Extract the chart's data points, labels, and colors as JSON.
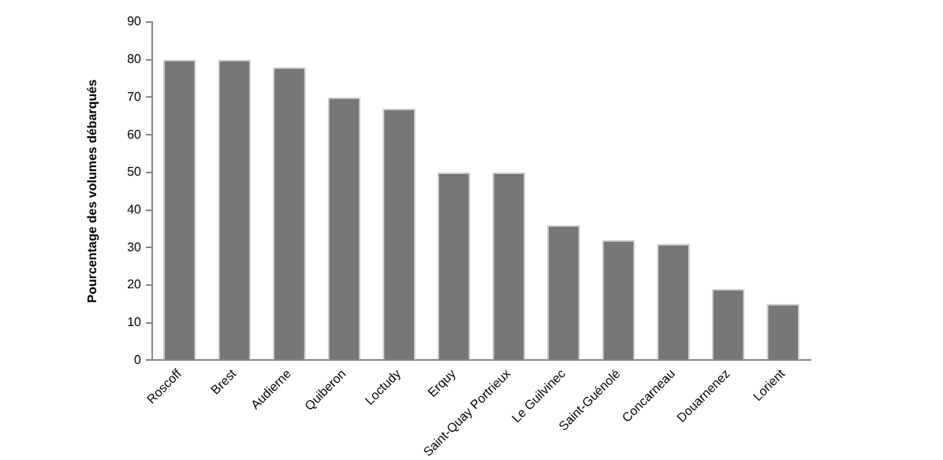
{
  "chart_data": {
    "type": "bar",
    "ylabel": "Pourcentage des volumes débarqués",
    "categories": [
      "Roscoff",
      "Brest",
      "Audierne",
      "Quiberon",
      "Loctudy",
      "Erquy",
      "Saint-Quay Portrieux",
      "Le Guilvinec",
      "Saint-Guénolé",
      "Concarneau",
      "Douarnenez",
      "Lorient"
    ],
    "values": [
      80,
      80,
      78,
      70,
      67,
      50,
      50,
      36,
      32,
      31,
      19,
      15
    ],
    "color": "#777777",
    "ylim": [
      0,
      90
    ],
    "yticks": [
      0,
      10,
      20,
      30,
      40,
      50,
      60,
      70,
      80,
      90
    ],
    "grid": false,
    "legend": false
  }
}
